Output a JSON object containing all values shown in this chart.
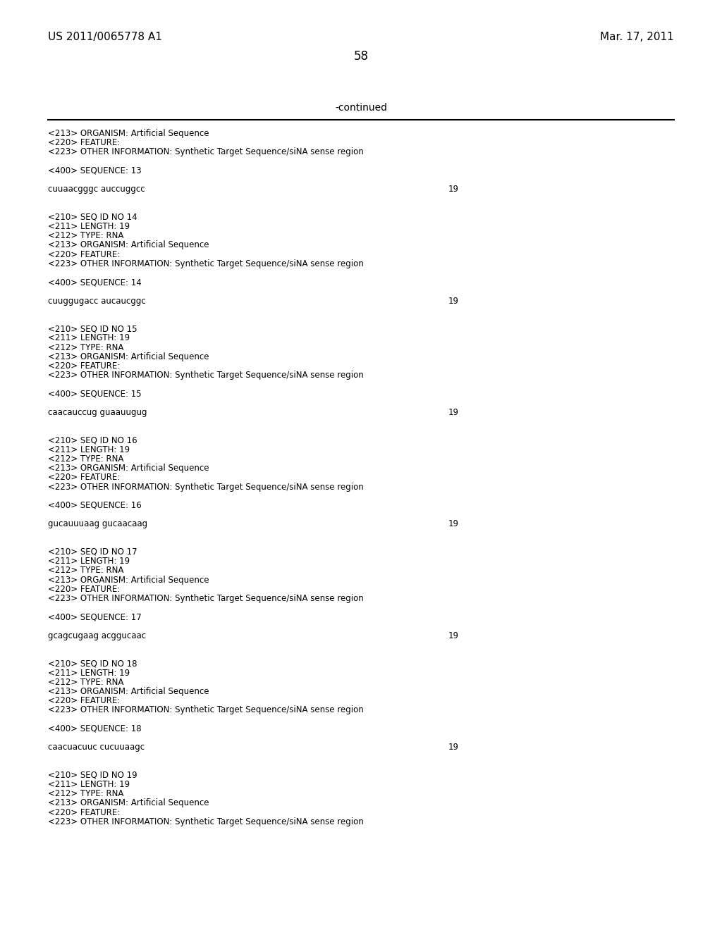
{
  "bg_color": "#ffffff",
  "header_left": "US 2011/0065778 A1",
  "header_right": "Mar. 17, 2011",
  "page_number": "58",
  "continued_text": "-continued",
  "monospace_font": "Courier New",
  "serif_font": "Times New Roman",
  "content_lines": [
    {
      "text": "<213> ORGANISM: Artificial Sequence",
      "has_num": false
    },
    {
      "text": "<220> FEATURE:",
      "has_num": false
    },
    {
      "text": "<223> OTHER INFORMATION: Synthetic Target Sequence/siNA sense region",
      "has_num": false
    },
    {
      "text": "",
      "has_num": false
    },
    {
      "text": "<400> SEQUENCE: 13",
      "has_num": false
    },
    {
      "text": "",
      "has_num": false
    },
    {
      "text": "cuuaacgggc auccuggcc",
      "has_num": true,
      "num": "19"
    },
    {
      "text": "",
      "has_num": false
    },
    {
      "text": "",
      "has_num": false
    },
    {
      "text": "<210> SEQ ID NO 14",
      "has_num": false
    },
    {
      "text": "<211> LENGTH: 19",
      "has_num": false
    },
    {
      "text": "<212> TYPE: RNA",
      "has_num": false
    },
    {
      "text": "<213> ORGANISM: Artificial Sequence",
      "has_num": false
    },
    {
      "text": "<220> FEATURE:",
      "has_num": false
    },
    {
      "text": "<223> OTHER INFORMATION: Synthetic Target Sequence/siNA sense region",
      "has_num": false
    },
    {
      "text": "",
      "has_num": false
    },
    {
      "text": "<400> SEQUENCE: 14",
      "has_num": false
    },
    {
      "text": "",
      "has_num": false
    },
    {
      "text": "cuuggugacc aucaucggc",
      "has_num": true,
      "num": "19"
    },
    {
      "text": "",
      "has_num": false
    },
    {
      "text": "",
      "has_num": false
    },
    {
      "text": "<210> SEQ ID NO 15",
      "has_num": false
    },
    {
      "text": "<211> LENGTH: 19",
      "has_num": false
    },
    {
      "text": "<212> TYPE: RNA",
      "has_num": false
    },
    {
      "text": "<213> ORGANISM: Artificial Sequence",
      "has_num": false
    },
    {
      "text": "<220> FEATURE:",
      "has_num": false
    },
    {
      "text": "<223> OTHER INFORMATION: Synthetic Target Sequence/siNA sense region",
      "has_num": false
    },
    {
      "text": "",
      "has_num": false
    },
    {
      "text": "<400> SEQUENCE: 15",
      "has_num": false
    },
    {
      "text": "",
      "has_num": false
    },
    {
      "text": "caacauccug guaauugug",
      "has_num": true,
      "num": "19"
    },
    {
      "text": "",
      "has_num": false
    },
    {
      "text": "",
      "has_num": false
    },
    {
      "text": "<210> SEQ ID NO 16",
      "has_num": false
    },
    {
      "text": "<211> LENGTH: 19",
      "has_num": false
    },
    {
      "text": "<212> TYPE: RNA",
      "has_num": false
    },
    {
      "text": "<213> ORGANISM: Artificial Sequence",
      "has_num": false
    },
    {
      "text": "<220> FEATURE:",
      "has_num": false
    },
    {
      "text": "<223> OTHER INFORMATION: Synthetic Target Sequence/siNA sense region",
      "has_num": false
    },
    {
      "text": "",
      "has_num": false
    },
    {
      "text": "<400> SEQUENCE: 16",
      "has_num": false
    },
    {
      "text": "",
      "has_num": false
    },
    {
      "text": "gucauuuaag gucaacaag",
      "has_num": true,
      "num": "19"
    },
    {
      "text": "",
      "has_num": false
    },
    {
      "text": "",
      "has_num": false
    },
    {
      "text": "<210> SEQ ID NO 17",
      "has_num": false
    },
    {
      "text": "<211> LENGTH: 19",
      "has_num": false
    },
    {
      "text": "<212> TYPE: RNA",
      "has_num": false
    },
    {
      "text": "<213> ORGANISM: Artificial Sequence",
      "has_num": false
    },
    {
      "text": "<220> FEATURE:",
      "has_num": false
    },
    {
      "text": "<223> OTHER INFORMATION: Synthetic Target Sequence/siNA sense region",
      "has_num": false
    },
    {
      "text": "",
      "has_num": false
    },
    {
      "text": "<400> SEQUENCE: 17",
      "has_num": false
    },
    {
      "text": "",
      "has_num": false
    },
    {
      "text": "gcagcugaag acggucaac",
      "has_num": true,
      "num": "19"
    },
    {
      "text": "",
      "has_num": false
    },
    {
      "text": "",
      "has_num": false
    },
    {
      "text": "<210> SEQ ID NO 18",
      "has_num": false
    },
    {
      "text": "<211> LENGTH: 19",
      "has_num": false
    },
    {
      "text": "<212> TYPE: RNA",
      "has_num": false
    },
    {
      "text": "<213> ORGANISM: Artificial Sequence",
      "has_num": false
    },
    {
      "text": "<220> FEATURE:",
      "has_num": false
    },
    {
      "text": "<223> OTHER INFORMATION: Synthetic Target Sequence/siNA sense region",
      "has_num": false
    },
    {
      "text": "",
      "has_num": false
    },
    {
      "text": "<400> SEQUENCE: 18",
      "has_num": false
    },
    {
      "text": "",
      "has_num": false
    },
    {
      "text": "caacuacuuc cucuuaagc",
      "has_num": true,
      "num": "19"
    },
    {
      "text": "",
      "has_num": false
    },
    {
      "text": "",
      "has_num": false
    },
    {
      "text": "<210> SEQ ID NO 19",
      "has_num": false
    },
    {
      "text": "<211> LENGTH: 19",
      "has_num": false
    },
    {
      "text": "<212> TYPE: RNA",
      "has_num": false
    },
    {
      "text": "<213> ORGANISM: Artificial Sequence",
      "has_num": false
    },
    {
      "text": "<220> FEATURE:",
      "has_num": false
    },
    {
      "text": "<223> OTHER INFORMATION: Synthetic Target Sequence/siNA sense region",
      "has_num": false
    }
  ]
}
